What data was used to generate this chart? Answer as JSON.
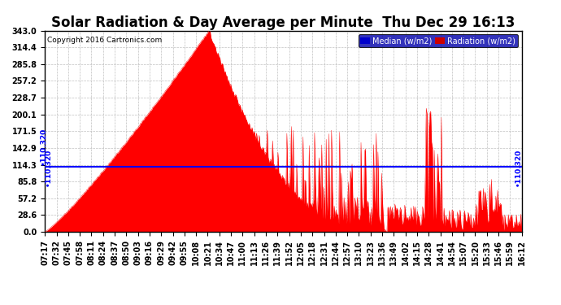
{
  "title": "Solar Radiation & Day Average per Minute  Thu Dec 29 16:13",
  "copyright": "Copyright 2016 Cartronics.com",
  "median_value": 110.32,
  "median_label": "110.320",
  "y_min": 0.0,
  "y_max": 343.0,
  "y_ticks": [
    0.0,
    28.6,
    57.2,
    85.8,
    114.3,
    142.9,
    171.5,
    200.1,
    228.7,
    257.2,
    285.8,
    314.4,
    343.0
  ],
  "x_tick_labels": [
    "07:17",
    "07:32",
    "07:45",
    "07:58",
    "08:11",
    "08:24",
    "08:37",
    "08:50",
    "09:03",
    "09:16",
    "09:29",
    "09:42",
    "09:55",
    "10:08",
    "10:21",
    "10:34",
    "10:47",
    "11:00",
    "11:13",
    "11:26",
    "11:39",
    "11:52",
    "12:05",
    "12:18",
    "12:31",
    "12:44",
    "12:57",
    "13:10",
    "13:23",
    "13:36",
    "13:49",
    "14:02",
    "14:15",
    "14:28",
    "14:41",
    "14:54",
    "15:07",
    "15:20",
    "15:33",
    "15:46",
    "15:59",
    "16:12"
  ],
  "background_color": "#ffffff",
  "plot_bg_color": "#ffffff",
  "grid_color": "#b0b0b0",
  "fill_color": "#ff0000",
  "line_color": "#ff0000",
  "median_color": "#0000ff",
  "legend_median_bg": "#0000cc",
  "legend_radiation_bg": "#cc0000",
  "title_fontsize": 12,
  "tick_fontsize": 7,
  "figsize": [
    6.9,
    3.75
  ],
  "dpi": 100
}
